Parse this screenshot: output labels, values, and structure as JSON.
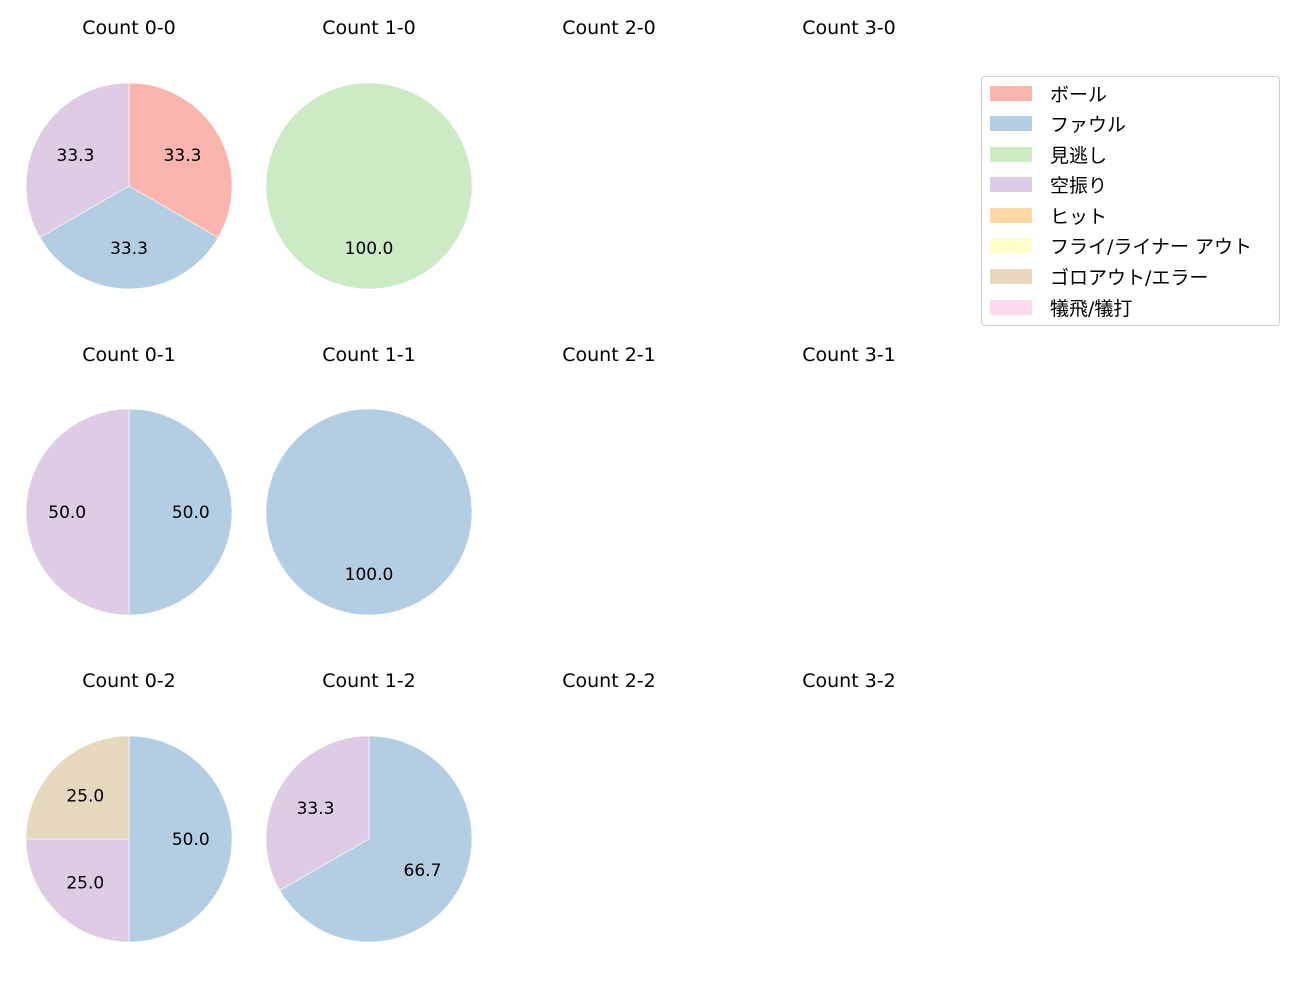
{
  "legend": {
    "items": [
      {
        "label": "ボール",
        "color": "#fbb4ae"
      },
      {
        "label": "ファウル",
        "color": "#b3cde3"
      },
      {
        "label": "見逃し",
        "color": "#ccebc5"
      },
      {
        "label": "空振り",
        "color": "#decbe4"
      },
      {
        "label": "ヒット",
        "color": "#fed9a6"
      },
      {
        "label": "フライ/ライナー アウト",
        "color": "#ffffcc"
      },
      {
        "label": "ゴロアウト/エラー",
        "color": "#e5d8bd"
      },
      {
        "label": "犠飛/犠打",
        "color": "#fddaec"
      }
    ]
  },
  "panels": [
    {
      "title": "Count 0-0"
    },
    {
      "title": "Count 1-0"
    },
    {
      "title": "Count 2-0"
    },
    {
      "title": "Count 3-0"
    },
    {
      "title": "Count 0-1"
    },
    {
      "title": "Count 1-1"
    },
    {
      "title": "Count 2-1"
    },
    {
      "title": "Count 3-1"
    },
    {
      "title": "Count 0-2"
    },
    {
      "title": "Count 1-2"
    },
    {
      "title": "Count 2-2"
    },
    {
      "title": "Count 3-2"
    }
  ],
  "chart_data": [
    {
      "type": "pie",
      "title": "Count 0-0",
      "labels": [
        "ボール",
        "ファウル",
        "空振り"
      ],
      "values": [
        33.3,
        33.3,
        33.3
      ]
    },
    {
      "type": "pie",
      "title": "Count 1-0",
      "labels": [
        "見逃し"
      ],
      "values": [
        100.0
      ]
    },
    {
      "type": "pie",
      "title": "Count 2-0",
      "labels": [],
      "values": []
    },
    {
      "type": "pie",
      "title": "Count 3-0",
      "labels": [],
      "values": []
    },
    {
      "type": "pie",
      "title": "Count 0-1",
      "labels": [
        "ファウル",
        "空振り"
      ],
      "values": [
        50.0,
        50.0
      ]
    },
    {
      "type": "pie",
      "title": "Count 1-1",
      "labels": [
        "ファウル"
      ],
      "values": [
        100.0
      ]
    },
    {
      "type": "pie",
      "title": "Count 2-1",
      "labels": [],
      "values": []
    },
    {
      "type": "pie",
      "title": "Count 3-1",
      "labels": [],
      "values": []
    },
    {
      "type": "pie",
      "title": "Count 0-2",
      "labels": [
        "ファウル",
        "空振り",
        "ゴロアウト/エラー"
      ],
      "values": [
        50.0,
        25.0,
        25.0
      ]
    },
    {
      "type": "pie",
      "title": "Count 1-2",
      "labels": [
        "ファウル",
        "空振り"
      ],
      "values": [
        66.7,
        33.3
      ]
    },
    {
      "type": "pie",
      "title": "Count 2-2",
      "labels": [],
      "values": []
    },
    {
      "type": "pie",
      "title": "Count 3-2",
      "labels": [],
      "values": []
    }
  ]
}
